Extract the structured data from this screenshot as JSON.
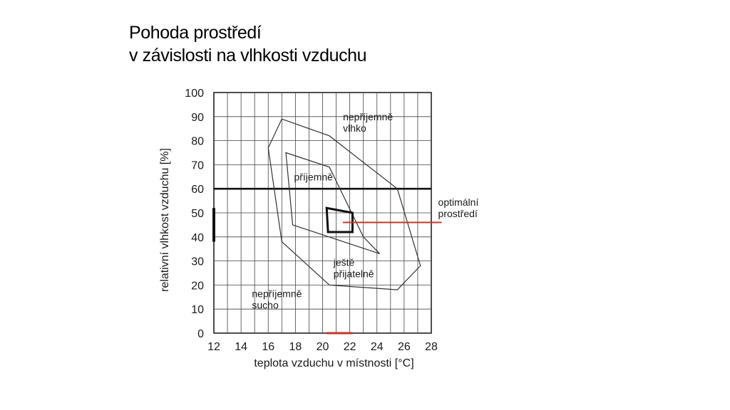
{
  "slide": {
    "title_line1": "Pohoda prostředí",
    "title_line2": "v závislosti na vlhkosti vzduchu"
  },
  "chart_data": {
    "type": "diagram-chart",
    "xlabel": "teplota vzduchu v místnosti [°C]",
    "ylabel": "relativní vlhkost vzduchu [%]",
    "xlim": [
      12,
      28
    ],
    "ylim": [
      0,
      100
    ],
    "x_ticks": [
      12,
      14,
      16,
      18,
      20,
      22,
      24,
      26,
      28
    ],
    "y_ticks": [
      0,
      10,
      20,
      30,
      40,
      50,
      60,
      70,
      80,
      90,
      100
    ],
    "grid": true,
    "reference_line_y": 60,
    "regions": [
      {
        "name": "outer",
        "polygon": [
          [
            17,
            89
          ],
          [
            20.5,
            82
          ],
          [
            25.5,
            60
          ],
          [
            27.2,
            28
          ],
          [
            25.5,
            18
          ],
          [
            20.5,
            20
          ],
          [
            17,
            38
          ],
          [
            16,
            77
          ]
        ]
      },
      {
        "name": "inner",
        "polygon": [
          [
            17.3,
            75
          ],
          [
            20.5,
            69
          ],
          [
            23,
            40
          ],
          [
            24.2,
            33
          ],
          [
            17.8,
            45
          ]
        ]
      },
      {
        "name": "optimum",
        "polygon": [
          [
            20.3,
            52
          ],
          [
            22.2,
            50
          ],
          [
            22.2,
            42
          ],
          [
            20.4,
            42
          ]
        ]
      }
    ],
    "annotations": [
      {
        "text_lines": [
          "nepříjemně",
          "vlhko"
        ],
        "x": 21.5,
        "y": 88.5
      },
      {
        "text_lines": [
          "příjemně"
        ],
        "x": 17.9,
        "y": 63.5
      },
      {
        "text_lines": [
          "ještě",
          "přijatelně"
        ],
        "x": 20.8,
        "y": 28
      },
      {
        "text_lines": [
          "nepříjemně",
          "sucho"
        ],
        "x": 14.8,
        "y": 15
      },
      {
        "text_lines": [
          "optimální",
          "prostředí"
        ],
        "x": 28.5,
        "y": 53
      }
    ],
    "pointer": {
      "from": [
        21.5,
        46
      ],
      "to": [
        28.5,
        46
      ]
    },
    "colors": {
      "grid": "#444444",
      "region": "#333333",
      "pointer": "#c0392b",
      "highlight": "#c0392b"
    }
  }
}
